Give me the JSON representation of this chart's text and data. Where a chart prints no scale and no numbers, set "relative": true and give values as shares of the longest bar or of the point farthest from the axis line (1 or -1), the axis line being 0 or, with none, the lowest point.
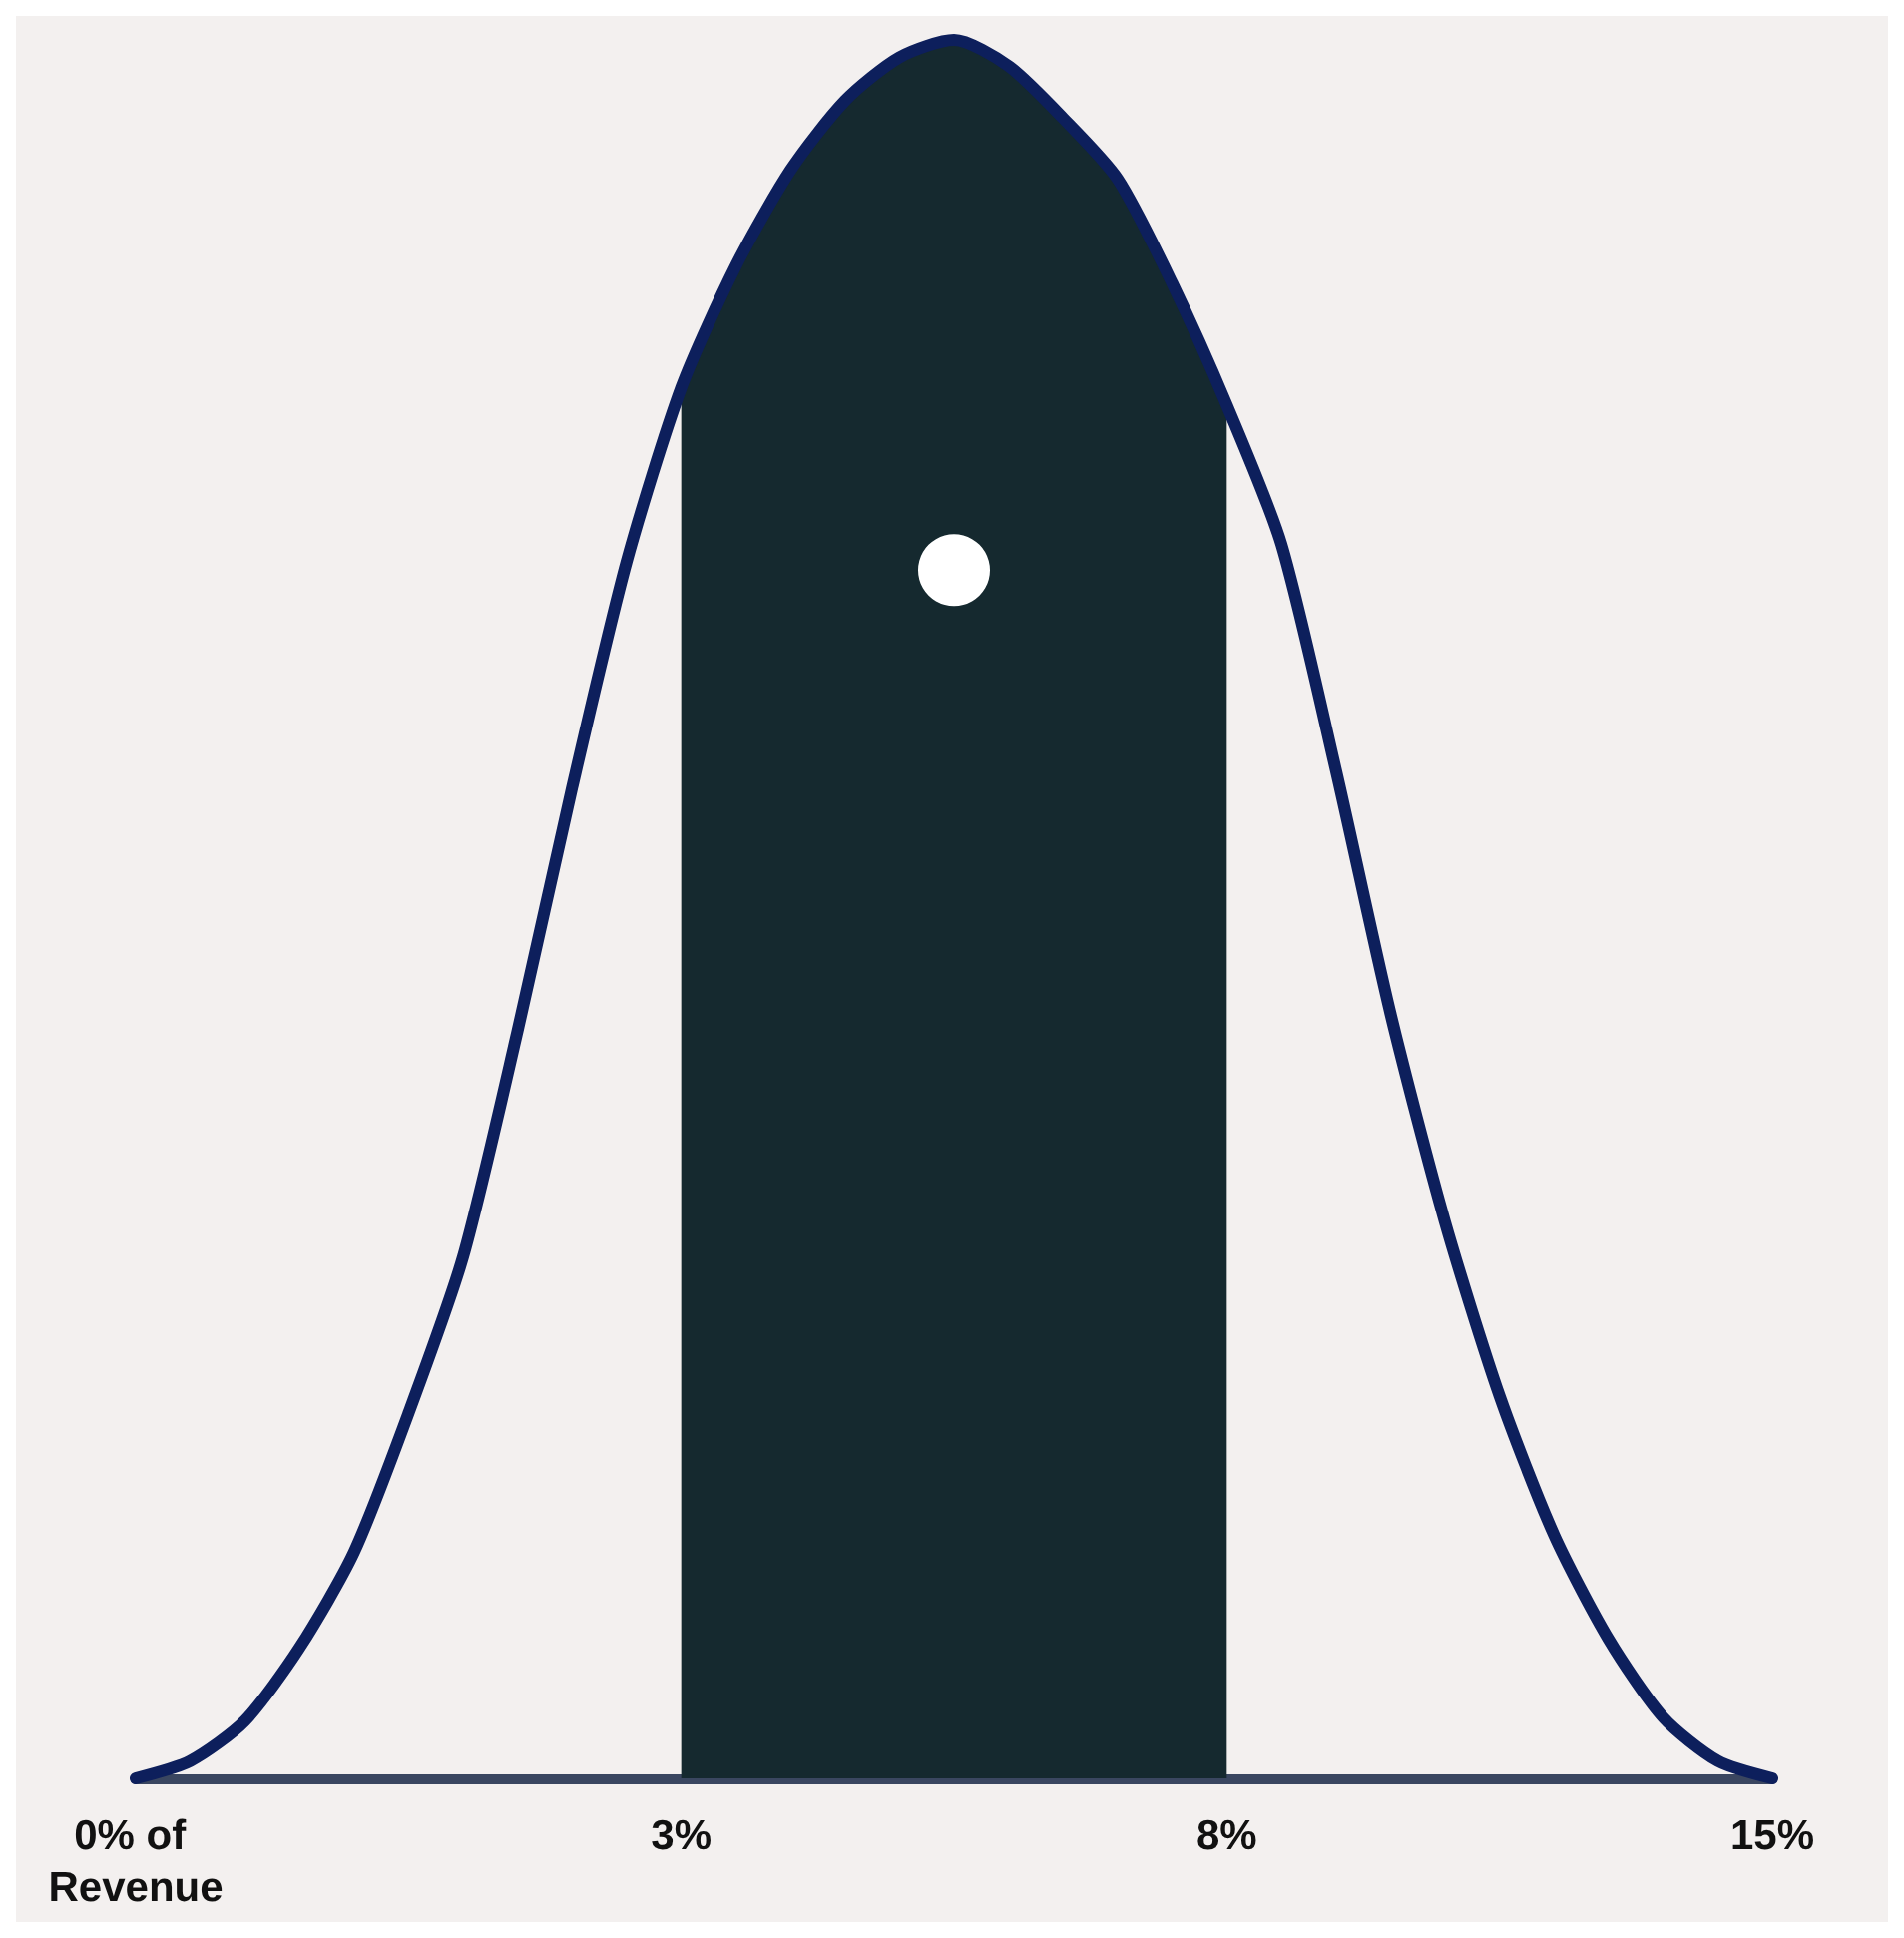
{
  "chart_data": {
    "type": "line",
    "relative": true,
    "grid": false,
    "marker": "none",
    "line_style": "solid",
    "categories": [
      "0% of Revenue",
      null,
      null,
      null,
      null,
      null,
      null,
      null,
      null,
      null,
      "3%",
      null,
      null,
      null,
      null,
      null,
      null,
      null,
      null,
      null,
      "8%",
      null,
      null,
      null,
      null,
      null,
      null,
      null,
      null,
      null,
      "15%"
    ],
    "bands": [
      {
        "axis": "x",
        "from": "3%",
        "to": "8%",
        "color": "#15292f"
      }
    ],
    "series": [
      {
        "color": "#0d1f5c",
        "values": [
          0,
          0.01,
          0.033,
          0.075,
          0.13,
          0.21,
          0.3,
          0.43,
          0.57,
          0.7,
          0.8,
          0.87,
          0.925,
          0.965,
          0.99,
          1,
          0.985,
          0.955,
          0.92,
          0.86,
          0.79,
          0.71,
          0.58,
          0.44,
          0.32,
          0.22,
          0.14,
          0.08,
          0.035,
          0.01,
          0
        ]
      },
      {
        "type": "scatter",
        "color": "#ffffff",
        "marker": "circle",
        "values": [
          null,
          null,
          null,
          null,
          null,
          null,
          null,
          null,
          null,
          null,
          null,
          null,
          null,
          null,
          null,
          0.695,
          null,
          null,
          null,
          null,
          null,
          null,
          null,
          null,
          null,
          null,
          null,
          null,
          null,
          null,
          null
        ]
      }
    ]
  }
}
